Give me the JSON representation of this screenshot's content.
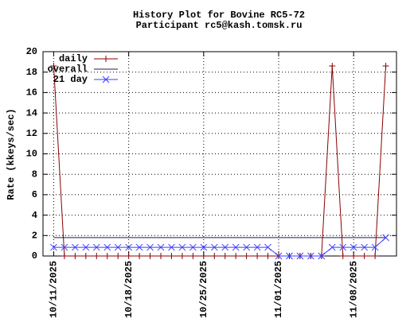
{
  "chart_data": {
    "type": "line",
    "title": "History Plot for Bovine RC5-72",
    "subtitle": "Participant rc5@kash.tomsk.ru",
    "ylabel": "Rate (kkeys/sec)",
    "x": [
      "2025-10-11",
      "2025-10-12",
      "2025-10-13",
      "2025-10-14",
      "2025-10-15",
      "2025-10-16",
      "2025-10-17",
      "2025-10-18",
      "2025-10-19",
      "2025-10-20",
      "2025-10-21",
      "2025-10-22",
      "2025-10-23",
      "2025-10-24",
      "2025-10-25",
      "2025-10-26",
      "2025-10-27",
      "2025-10-28",
      "2025-10-29",
      "2025-10-30",
      "2025-10-31",
      "2025-11-01",
      "2025-11-02",
      "2025-11-03",
      "2025-11-04",
      "2025-11-05",
      "2025-11-06",
      "2025-11-07",
      "2025-11-08",
      "2025-11-09",
      "2025-11-10",
      "2025-11-11"
    ],
    "series": [
      {
        "name": "daily",
        "color": "#8b0000",
        "marker": "plus",
        "values": [
          18.6,
          0,
          0,
          0,
          0,
          0,
          0,
          0,
          0,
          0,
          0,
          0,
          0,
          0,
          0,
          0,
          0,
          0,
          0,
          0,
          0,
          0,
          0,
          0,
          0,
          0,
          18.6,
          0,
          0,
          0,
          0,
          18.6
        ]
      },
      {
        "name": "overall",
        "color": "#1c1c50",
        "marker": "none",
        "values": [
          1.8,
          1.8,
          1.8,
          1.8,
          1.8,
          1.8,
          1.8,
          1.8,
          1.8,
          1.8,
          1.8,
          1.8,
          1.8,
          1.8,
          1.8,
          1.8,
          1.8,
          1.8,
          1.8,
          1.8,
          1.8,
          1.8,
          1.8,
          1.8,
          1.8,
          1.8,
          1.8,
          1.8,
          1.8,
          1.8,
          1.8,
          1.8
        ]
      },
      {
        "name": "21 day",
        "color": "#3c3cff",
        "marker": "cross",
        "values": [
          0.85,
          0.85,
          0.85,
          0.85,
          0.85,
          0.85,
          0.85,
          0.85,
          0.85,
          0.85,
          0.85,
          0.85,
          0.85,
          0.85,
          0.85,
          0.85,
          0.85,
          0.85,
          0.85,
          0.85,
          0.85,
          0,
          0,
          0,
          0,
          0,
          0.85,
          0.85,
          0.85,
          0.85,
          0.85,
          1.8
        ]
      }
    ],
    "xlim": [
      "2025-10-10",
      "2025-11-12"
    ],
    "xticks": [
      {
        "value": "2025-10-11",
        "label": "10/11/2025"
      },
      {
        "value": "2025-10-18",
        "label": "10/18/2025"
      },
      {
        "value": "2025-10-25",
        "label": "10/25/2025"
      },
      {
        "value": "2025-11-01",
        "label": "11/01/2025"
      },
      {
        "value": "2025-11-08",
        "label": "11/08/2025"
      }
    ],
    "ylim": [
      0,
      20
    ],
    "yticks": [
      0,
      2,
      4,
      6,
      8,
      10,
      12,
      14,
      16,
      18,
      20
    ],
    "grid": true,
    "legend": "top-left"
  }
}
